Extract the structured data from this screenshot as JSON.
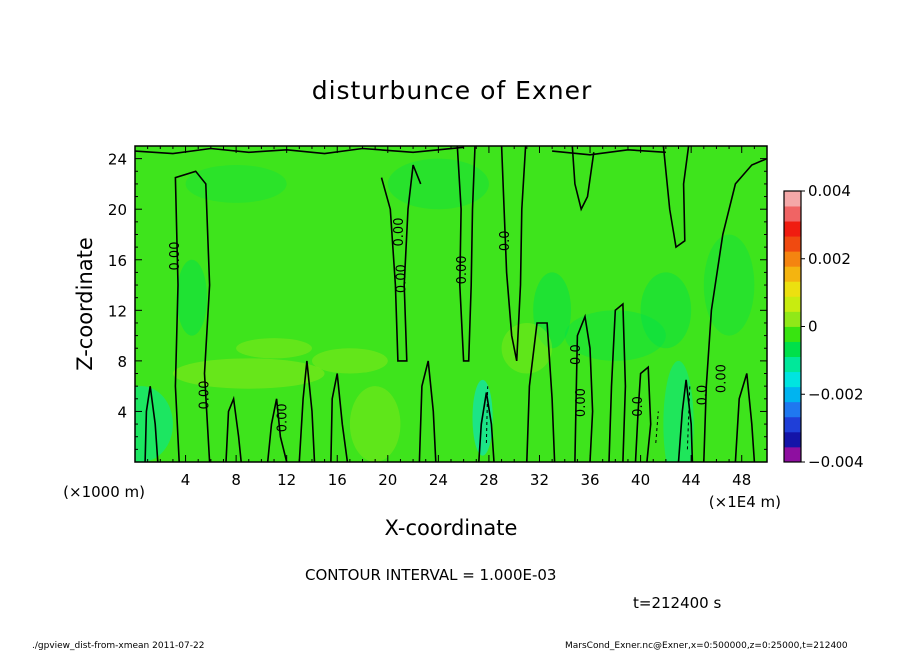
{
  "chart_data": {
    "type": "heatmap",
    "title": "disturbunce of Exner",
    "xlabel": "X-coordinate",
    "ylabel": "Z-coordinate",
    "x_unit_label": "(×1E4 m)",
    "y_unit_label": "(×1000 m)",
    "xlim": [
      0,
      50
    ],
    "ylim": [
      0,
      25
    ],
    "x_ticks": [
      4,
      8,
      12,
      16,
      20,
      24,
      28,
      32,
      36,
      40,
      44,
      48
    ],
    "y_ticks": [
      4,
      8,
      12,
      16,
      20,
      24
    ],
    "x_tick_labels": [
      "4",
      "8",
      "12",
      "16",
      "20",
      "24",
      "28",
      "32",
      "36",
      "40",
      "44",
      "48"
    ],
    "y_tick_labels": [
      "4",
      "8",
      "12",
      "16",
      "20",
      "24"
    ],
    "colorbar": {
      "min": -0.004,
      "max": 0.004,
      "tick_labels": [
        "0.004",
        "0.002",
        "0",
        "−0.002",
        "−0.004"
      ],
      "tick_values": [
        0.004,
        0.002,
        0,
        -0.002,
        -0.004
      ],
      "colors": [
        "#8e0fa0",
        "#1414a8",
        "#1f3fd8",
        "#1f78f0",
        "#00b4f0",
        "#00e4e0",
        "#00e89a",
        "#00e04a",
        "#38e410",
        "#90e818",
        "#c8ec10",
        "#ece010",
        "#f4b410",
        "#f48410",
        "#f04a10",
        "#f01c10",
        "#f06464",
        "#f4a8a8"
      ]
    },
    "contour_labels": [
      {
        "text": "0.00",
        "x": 3.5,
        "z": 16.3
      },
      {
        "text": "0.00",
        "x": 5.8,
        "z": 5.3
      },
      {
        "text": "0.00",
        "x": 12.0,
        "z": 3.5
      },
      {
        "text": "0.00",
        "x": 21.2,
        "z": 18.2
      },
      {
        "text": "0.00",
        "x": 21.4,
        "z": 14.5
      },
      {
        "text": "0.00",
        "x": 26.2,
        "z": 15.2
      },
      {
        "text": "0.0",
        "x": 29.6,
        "z": 17.5
      },
      {
        "text": "0.0",
        "x": 35.2,
        "z": 8.5
      },
      {
        "text": "0.00",
        "x": 35.6,
        "z": 4.7
      },
      {
        "text": "0.0",
        "x": 40.1,
        "z": 4.4
      },
      {
        "text": "0.0",
        "x": 45.2,
        "z": 5.3
      },
      {
        "text": "0.00",
        "x": 46.7,
        "z": 6.6
      }
    ],
    "contour_interval_text": "CONTOUR INTERVAL = 1.000E-03",
    "time_text": "t=212400 s"
  },
  "footer": {
    "left": "./gpview_dist-from-xmean  2011-07-22",
    "right": "MarsCond_Exner.nc@Exner,x=0:500000,z=0:25000,t=212400"
  }
}
